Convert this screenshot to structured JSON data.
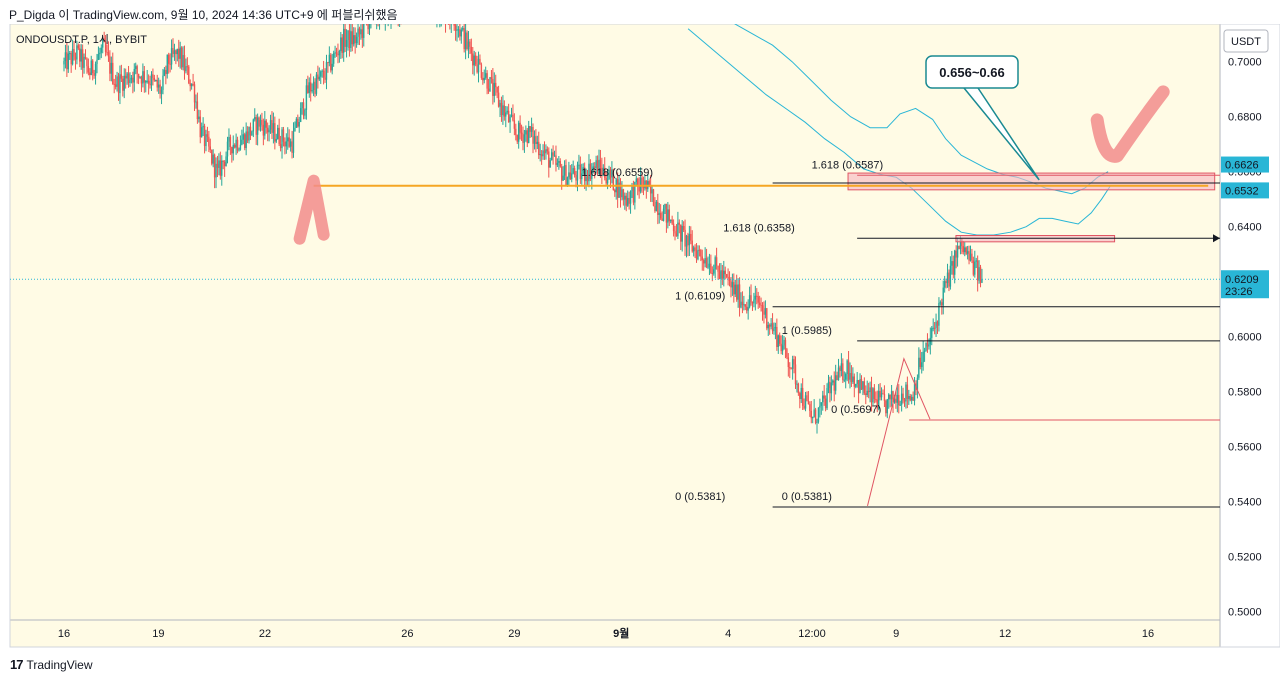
{
  "header": {
    "text": "P_Digda 이 TradingView.com, 9월 10, 2024 14:36 UTC+9 에 퍼블리쉬했음"
  },
  "footer": {
    "logo_mark": "17",
    "logo_text": "TradingView"
  },
  "colors": {
    "background": "#fffbe5",
    "candle_up": "#26a69a",
    "candle_down": "#ef5350",
    "band": "#29b6d6",
    "orange": "#f5a623",
    "zone_fill": "#f7b6c0",
    "zone_stroke": "#e05563",
    "check_mark": "#f28c8c",
    "fib_line": "#131722",
    "fib_red": "#e05563",
    "price_tag": "#29b6d6",
    "last_tag": "#131722"
  },
  "chart_data": {
    "type": "candlestick",
    "title": "ONDOUSDT.P, 1시, BYBIT",
    "currency": "USDT",
    "ylim": [
      0.497,
      0.7137
    ],
    "y_ticks": [
      "0.5000",
      "0.5200",
      "0.5400",
      "0.5600",
      "0.5800",
      "0.6000",
      "0.6200",
      "0.6400",
      "0.6600",
      "0.6800",
      "0.7000"
    ],
    "x_ticks": [
      {
        "label": "16",
        "t": 0.0
      },
      {
        "label": "19",
        "t": 72.6
      },
      {
        "label": "22",
        "t": 154.6
      },
      {
        "label": "26",
        "t": 264.1
      },
      {
        "label": "29",
        "t": 346.4
      },
      {
        "label": "9월",
        "t": 428.6
      },
      {
        "label": "4",
        "t": 510.8
      },
      {
        "label": "12:00",
        "t": 575.3
      },
      {
        "label": "9",
        "t": 640.0
      },
      {
        "label": "12",
        "t": 723.8
      },
      {
        "label": "16",
        "t": 833.7
      }
    ],
    "candle_count": 640,
    "candle_path": [
      [
        0,
        0.699
      ],
      [
        10,
        0.703
      ],
      [
        20,
        0.696
      ],
      [
        30,
        0.705
      ],
      [
        40,
        0.692
      ],
      [
        55,
        0.696
      ],
      [
        65,
        0.694
      ],
      [
        75,
        0.689
      ],
      [
        80,
        0.7
      ],
      [
        88,
        0.703
      ],
      [
        100,
        0.69
      ],
      [
        105,
        0.675
      ],
      [
        112,
        0.667
      ],
      [
        118,
        0.659
      ],
      [
        128,
        0.67
      ],
      [
        138,
        0.672
      ],
      [
        150,
        0.678
      ],
      [
        165,
        0.673
      ],
      [
        175,
        0.67
      ],
      [
        188,
        0.69
      ],
      [
        200,
        0.695
      ],
      [
        215,
        0.708
      ],
      [
        225,
        0.708
      ],
      [
        235,
        0.716
      ],
      [
        250,
        0.718
      ],
      [
        270,
        0.72
      ],
      [
        290,
        0.718
      ],
      [
        300,
        0.716
      ],
      [
        310,
        0.706
      ],
      [
        325,
        0.694
      ],
      [
        338,
        0.682
      ],
      [
        348,
        0.674
      ],
      [
        358,
        0.674
      ],
      [
        372,
        0.665
      ],
      [
        385,
        0.659
      ],
      [
        398,
        0.659
      ],
      [
        410,
        0.662
      ],
      [
        422,
        0.657
      ],
      [
        432,
        0.65
      ],
      [
        445,
        0.656
      ],
      [
        455,
        0.649
      ],
      [
        470,
        0.64
      ],
      [
        482,
        0.633
      ],
      [
        495,
        0.628
      ],
      [
        510,
        0.62
      ],
      [
        522,
        0.613
      ],
      [
        535,
        0.612
      ],
      [
        545,
        0.603
      ],
      [
        552,
        0.597
      ],
      [
        560,
        0.589
      ],
      [
        568,
        0.578
      ],
      [
        576,
        0.57
      ],
      [
        584,
        0.575
      ],
      [
        590,
        0.582
      ],
      [
        602,
        0.589
      ],
      [
        612,
        0.582
      ],
      [
        620,
        0.578
      ],
      [
        625,
        0.577
      ],
      [
        632,
        0.575
      ],
      [
        640,
        0.578
      ],
      [
        646,
        0.58
      ],
      [
        652,
        0.578
      ],
      [
        658,
        0.59
      ],
      [
        664,
        0.596
      ],
      [
        670,
        0.604
      ],
      [
        676,
        0.616
      ],
      [
        682,
        0.623
      ],
      [
        686,
        0.63
      ],
      [
        690,
        0.633
      ],
      [
        694,
        0.63
      ],
      [
        699,
        0.626
      ],
      [
        704,
        0.622
      ],
      [
        706,
        0.6209
      ]
    ],
    "last_price": "0.6209",
    "last_price_countdown": "23:26",
    "price_tags": [
      {
        "label": "0.6626",
        "value": 0.6626,
        "style": "filled"
      },
      {
        "label": "0.6532",
        "value": 0.6532,
        "style": "filled"
      },
      {
        "label": "0.6209",
        "value": 0.6209,
        "style": "dark"
      }
    ],
    "band_upper_path": [
      [
        480,
        0.726
      ],
      [
        500,
        0.719
      ],
      [
        515,
        0.714
      ],
      [
        530,
        0.71
      ],
      [
        545,
        0.706
      ],
      [
        560,
        0.7
      ],
      [
        575,
        0.693
      ],
      [
        590,
        0.686
      ],
      [
        605,
        0.68
      ],
      [
        620,
        0.676
      ],
      [
        633,
        0.676
      ],
      [
        643,
        0.681
      ],
      [
        655,
        0.683
      ],
      [
        668,
        0.679
      ],
      [
        678,
        0.672
      ],
      [
        690,
        0.666
      ],
      [
        702,
        0.663
      ],
      [
        710,
        0.661
      ],
      [
        722,
        0.659
      ],
      [
        733,
        0.658
      ],
      [
        745,
        0.656
      ],
      [
        755,
        0.654
      ],
      [
        765,
        0.653
      ],
      [
        775,
        0.652
      ],
      [
        785,
        0.654
      ],
      [
        795,
        0.658
      ],
      [
        803,
        0.66
      ]
    ],
    "band_lower_path": [
      [
        480,
        0.712
      ],
      [
        495,
        0.706
      ],
      [
        510,
        0.7
      ],
      [
        525,
        0.694
      ],
      [
        540,
        0.688
      ],
      [
        555,
        0.683
      ],
      [
        570,
        0.678
      ],
      [
        585,
        0.672
      ],
      [
        600,
        0.667
      ],
      [
        615,
        0.661
      ],
      [
        628,
        0.659
      ],
      [
        640,
        0.658
      ],
      [
        652,
        0.654
      ],
      [
        665,
        0.648
      ],
      [
        678,
        0.642
      ],
      [
        690,
        0.638
      ],
      [
        702,
        0.637
      ],
      [
        715,
        0.637
      ],
      [
        728,
        0.638
      ],
      [
        740,
        0.64
      ],
      [
        750,
        0.643
      ],
      [
        760,
        0.643
      ],
      [
        770,
        0.642
      ],
      [
        780,
        0.641
      ],
      [
        790,
        0.645
      ],
      [
        798,
        0.65
      ],
      [
        805,
        0.655
      ]
    ],
    "orange_line": {
      "value": 0.6549,
      "t_start": 192,
      "t_end": 880
    },
    "fib_lines": [
      {
        "label": "1.618 (0.6559)",
        "value": 0.6559,
        "t_start": 545,
        "t_end": 1000,
        "label_t": 398,
        "color": "black"
      },
      {
        "label": "1.618 (0.6587)",
        "value": 0.6587,
        "t_start": 610,
        "t_end": 1000,
        "label_t": 575,
        "color": "red"
      },
      {
        "label": "1.618 (0.6358)",
        "value": 0.6358,
        "t_start": 610,
        "t_end": 1000,
        "label_t": 507,
        "color": "black",
        "arrow": true
      },
      {
        "label": "1 (0.6109)",
        "value": 0.6109,
        "t_start": 545,
        "t_end": 1000,
        "label_t": 470,
        "color": "black"
      },
      {
        "label": "1 (0.5985)",
        "value": 0.5985,
        "t_start": 610,
        "t_end": 1000,
        "label_t": 552,
        "color": "black"
      },
      {
        "label": "0 (0.5697)",
        "value": 0.5697,
        "t_start": 650,
        "t_end": 1000,
        "label_t": 590,
        "color": "red"
      },
      {
        "label": "0 (0.5381)",
        "value": 0.5381,
        "t_start": 545,
        "t_end": 1000,
        "label_t": 470,
        "color": "black"
      },
      {
        "label": "0 (0.5381)",
        "value": 0.5381,
        "t_start": 545,
        "t_end": 1000,
        "label_t": 552,
        "color": "black",
        "label_only": true
      }
    ],
    "zones": [
      {
        "t0": 603,
        "t1": 885,
        "v_top": 0.6595,
        "v_bot": 0.6534
      },
      {
        "t0": 686,
        "t1": 808,
        "v_top": 0.6368,
        "v_bot": 0.6345
      }
    ],
    "zigzag": [
      [
        618,
        0.5385
      ],
      [
        646,
        0.592
      ],
      [
        666,
        0.57
      ]
    ],
    "callout": {
      "text": "0.656~0.66",
      "t_anchor": 750,
      "v_anchor": 0.657
    },
    "marks": {
      "a_t": 192,
      "a_v": 0.64,
      "check_t": 830,
      "check_v": 0.665
    }
  }
}
